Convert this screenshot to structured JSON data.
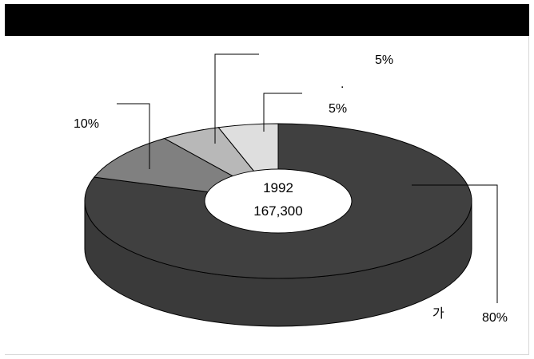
{
  "chart_data": {
    "type": "pie",
    "style": "3d-donut",
    "title": "",
    "center_label": {
      "year": "1992",
      "total": "167,300"
    },
    "slices": [
      {
        "label": "가",
        "percent_label": "80%",
        "value": 80,
        "color": "#404040"
      },
      {
        "label": "",
        "percent_label": "10%",
        "value": 10,
        "color": "#808080"
      },
      {
        "label": "",
        "percent_label": "5%",
        "value": 5,
        "color": "#b8b8b8"
      },
      {
        "label": ".",
        "percent_label": "5%",
        "value": 5,
        "color": "#dedede"
      }
    ]
  }
}
